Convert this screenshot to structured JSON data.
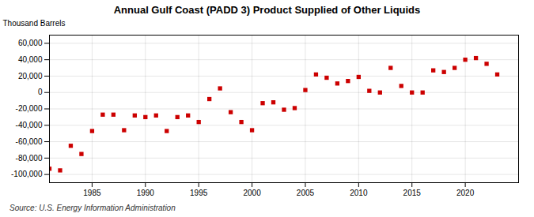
{
  "chart_data": {
    "type": "scatter",
    "title": "Annual Gulf Coast (PADD 3) Product Supplied of Other Liquids",
    "ylabel": "Thousand Barrels",
    "annotations": [
      "Source: U.S. Energy Information Administration"
    ],
    "x": [
      1981,
      1982,
      1983,
      1984,
      1985,
      1986,
      1987,
      1988,
      1989,
      1990,
      1991,
      1992,
      1993,
      1994,
      1995,
      1996,
      1997,
      1998,
      1999,
      2000,
      2001,
      2002,
      2003,
      2004,
      2005,
      2006,
      2007,
      2008,
      2009,
      2010,
      2011,
      2012,
      2013,
      2014,
      2015,
      2016,
      2017,
      2018,
      2019,
      2020,
      2021,
      2022,
      2023
    ],
    "values": [
      -93000,
      -95000,
      -65000,
      -75000,
      -47000,
      -27000,
      -27000,
      -46000,
      -28000,
      -30000,
      -28000,
      -47000,
      -30000,
      -28000,
      -36000,
      -8000,
      5000,
      -24000,
      -36000,
      -46000,
      -13000,
      -12000,
      -21000,
      -19000,
      3000,
      22000,
      18000,
      11000,
      14000,
      19000,
      2000,
      0,
      30000,
      8000,
      0,
      0,
      27000,
      25000,
      30000,
      40000,
      42000,
      35000,
      22000
    ],
    "color": "#cc0000",
    "marker": "square",
    "xlim": [
      1981,
      2025
    ],
    "xticks": [
      1985,
      1990,
      1995,
      2000,
      2005,
      2010,
      2015,
      2020
    ],
    "ylim": [
      -110000,
      70000
    ],
    "yticks": [
      {
        "value": -100000,
        "label": "-100,000"
      },
      {
        "value": -80000,
        "label": "-80,000"
      },
      {
        "value": -60000,
        "label": "-60,000"
      },
      {
        "value": -40000,
        "label": "-40,000"
      },
      {
        "value": -20000,
        "label": "-20,000"
      },
      0,
      {
        "value": 20000,
        "label": "20,000"
      },
      {
        "value": 40000,
        "label": "40,000"
      },
      {
        "value": 60000,
        "label": "60,000"
      }
    ],
    "grid": true
  }
}
